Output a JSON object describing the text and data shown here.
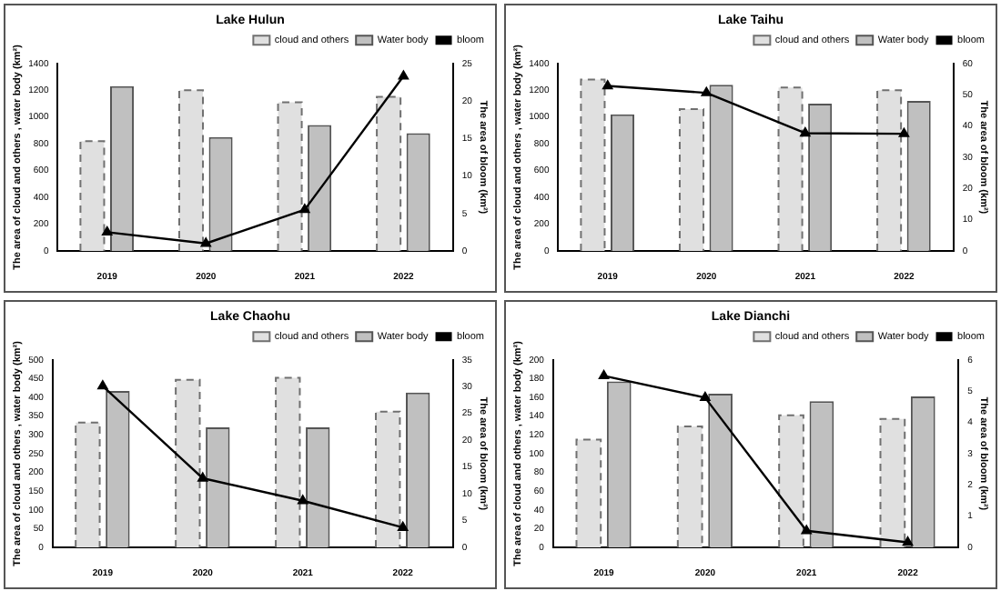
{
  "chart_data": [
    {
      "type": "bar",
      "title": "Lake Hulun",
      "categories": [
        "2019",
        "2020",
        "2021",
        "2022"
      ],
      "ylabel": "The area of cloud and others , water body (km²)",
      "y2label": "The area of bloom (km²)",
      "ylim": [
        0,
        1400
      ],
      "yticks": [
        0,
        200,
        400,
        600,
        800,
        1000,
        1200,
        1400
      ],
      "y2lim": [
        0,
        25
      ],
      "y2ticks": [
        0,
        5,
        10,
        15,
        20,
        25
      ],
      "legend": "top right",
      "grid": false,
      "marker": "triangle",
      "series": [
        {
          "name": "cloud and others",
          "color": "#e0e0e0",
          "line_style": "dashed",
          "values": [
            820,
            1200,
            1110,
            1150
          ]
        },
        {
          "name": "Water body",
          "color": "#c0c0c0",
          "values": [
            1230,
            850,
            940,
            880
          ]
        },
        {
          "name": "bloom",
          "type": "line",
          "axis": "y2",
          "color": "#000000",
          "line_style": "solid",
          "values": [
            2.5,
            1.0,
            5.5,
            23.3
          ]
        }
      ]
    },
    {
      "type": "bar",
      "title": "Lake Taihu",
      "categories": [
        "2019",
        "2020",
        "2021",
        "2022"
      ],
      "ylabel": "The area of cloud and others , water body (km²)",
      "y2label": "The area of bloom (km²)",
      "ylim": [
        0,
        1400
      ],
      "yticks": [
        0,
        200,
        400,
        600,
        800,
        1000,
        1200,
        1400
      ],
      "y2lim": [
        0,
        60
      ],
      "y2ticks": [
        0,
        10,
        20,
        30,
        40,
        50,
        60
      ],
      "legend": "top right",
      "grid": false,
      "marker": "triangle",
      "series": [
        {
          "name": "cloud and others",
          "color": "#e0e0e0",
          "line_style": "dashed",
          "values": [
            1280,
            1060,
            1220,
            1200
          ]
        },
        {
          "name": "Water body",
          "color": "#c0c0c0",
          "values": [
            1020,
            1240,
            1100,
            1120
          ]
        },
        {
          "name": "bloom",
          "type": "line",
          "axis": "y2",
          "color": "#000000",
          "line_style": "solid",
          "values": [
            52.8,
            50.6,
            37.7,
            37.5
          ]
        }
      ]
    },
    {
      "type": "bar",
      "title": "Lake Chaohu",
      "categories": [
        "2019",
        "2020",
        "2021",
        "2022"
      ],
      "ylabel": "The area of cloud and others , water body (km²)",
      "y2label": "The area of bloom (km²)",
      "ylim": [
        0,
        500
      ],
      "yticks": [
        0,
        50,
        100,
        150,
        200,
        250,
        300,
        350,
        400,
        450,
        500
      ],
      "y2lim": [
        0,
        35
      ],
      "y2ticks": [
        0,
        5,
        10,
        15,
        20,
        25,
        30,
        35
      ],
      "legend": "top right",
      "grid": false,
      "marker": "triangle",
      "series": [
        {
          "name": "cloud and others",
          "color": "#e0e0e0",
          "line_style": "dashed",
          "values": [
            333,
            447,
            452,
            362
          ]
        },
        {
          "name": "Water body",
          "color": "#c0c0c0",
          "values": [
            417,
            320,
            320,
            413
          ]
        },
        {
          "name": "bloom",
          "type": "line",
          "axis": "y2",
          "color": "#000000",
          "line_style": "solid",
          "values": [
            30.1,
            12.9,
            8.7,
            3.7
          ]
        }
      ]
    },
    {
      "type": "bar",
      "title": "Lake Dianchi",
      "categories": [
        "2019",
        "2020",
        "2021",
        "2022"
      ],
      "ylabel": "The area of cloud and others , water body (km²)",
      "y2label": "The area of bloom (km²)",
      "ylim": [
        0,
        200
      ],
      "yticks": [
        0,
        20,
        40,
        60,
        80,
        100,
        120,
        140,
        160,
        180,
        200
      ],
      "y2lim": [
        0,
        6
      ],
      "y2ticks": [
        0,
        1,
        2,
        3,
        4,
        5,
        6
      ],
      "legend": "top right",
      "grid": false,
      "marker": "triangle",
      "series": [
        {
          "name": "cloud and others",
          "color": "#e0e0e0",
          "line_style": "dashed",
          "values": [
            115,
            129,
            141,
            137
          ]
        },
        {
          "name": "Water body",
          "color": "#c0c0c0",
          "values": [
            177,
            164,
            156,
            161
          ]
        },
        {
          "name": "bloom",
          "type": "line",
          "axis": "y2",
          "color": "#000000",
          "line_style": "solid",
          "values": [
            5.49,
            4.79,
            0.53,
            0.16
          ]
        }
      ]
    }
  ]
}
